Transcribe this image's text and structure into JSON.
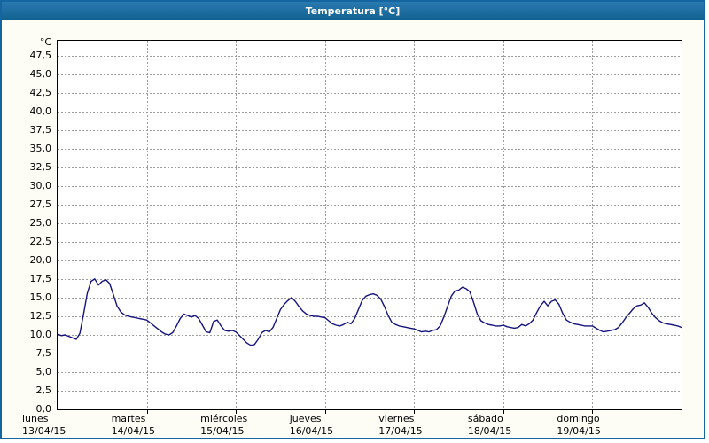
{
  "window": {
    "title": "Temperatura [°C]"
  },
  "colors": {
    "titlebar": "#1565a0",
    "series_line": "#14147e",
    "grid": "#9c9c9c",
    "plot_border": "#000000",
    "plot_background": "#ffffff"
  },
  "chart_data": {
    "type": "line",
    "title": "Temperatura [°C]",
    "grid": {
      "dashed": true,
      "horizontal": true,
      "vertical": true
    },
    "legend": "none",
    "y_axis": {
      "unit_label": "°C",
      "min": 0,
      "plot_top_value": 49.5,
      "tick_step": 2.5,
      "tick_values": [
        0,
        2.5,
        5,
        7.5,
        10,
        12.5,
        15,
        17.5,
        20,
        22.5,
        25,
        27.5,
        30,
        32.5,
        35,
        37.5,
        40,
        42.5,
        45,
        47.5
      ],
      "tick_labels": [
        "0,0",
        "2,5",
        "5,0",
        "7,5",
        "10,0",
        "12,5",
        "15,0",
        "17,5",
        "20,0",
        "22,5",
        "25,0",
        "27,5",
        "30,0",
        "32,5",
        "35,0",
        "37,5",
        "40,0",
        "42,5",
        "45,0",
        "47,5"
      ]
    },
    "x_axis": {
      "span_days": 7,
      "days": [
        {
          "name": "lunes",
          "date": "13/04/15"
        },
        {
          "name": "martes",
          "date": "14/04/15"
        },
        {
          "name": "miércoles",
          "date": "15/04/15"
        },
        {
          "name": "jueves",
          "date": "16/04/15"
        },
        {
          "name": "viernes",
          "date": "17/04/15"
        },
        {
          "name": "sábado",
          "date": "18/04/15"
        },
        {
          "name": "domingo",
          "date": "19/04/15"
        }
      ]
    },
    "series": [
      {
        "name": "Temperatura",
        "color": "#14147e",
        "sample_interval_hours": 1,
        "values": [
          10.1,
          9.9,
          10.0,
          9.8,
          9.6,
          9.4,
          10.2,
          12.8,
          15.6,
          17.2,
          17.5,
          16.7,
          17.2,
          17.4,
          16.9,
          15.4,
          13.9,
          13.1,
          12.7,
          12.5,
          12.4,
          12.3,
          12.2,
          12.1,
          12.0,
          11.6,
          11.2,
          10.8,
          10.4,
          10.1,
          10.0,
          10.3,
          11.2,
          12.2,
          12.8,
          12.6,
          12.4,
          12.6,
          12.2,
          11.3,
          10.4,
          10.3,
          11.8,
          12.0,
          11.2,
          10.6,
          10.5,
          10.6,
          10.4,
          9.9,
          9.4,
          8.9,
          8.6,
          8.7,
          9.4,
          10.3,
          10.6,
          10.4,
          11.0,
          12.2,
          13.4,
          14.1,
          14.6,
          15.0,
          14.5,
          13.8,
          13.2,
          12.8,
          12.6,
          12.5,
          12.5,
          12.4,
          12.3,
          11.9,
          11.5,
          11.3,
          11.2,
          11.4,
          11.7,
          11.5,
          12.2,
          13.4,
          14.6,
          15.2,
          15.4,
          15.5,
          15.3,
          14.8,
          13.8,
          12.6,
          11.7,
          11.4,
          11.2,
          11.1,
          11.0,
          10.9,
          10.8,
          10.6,
          10.4,
          10.5,
          10.4,
          10.6,
          10.7,
          11.2,
          12.4,
          13.8,
          15.2,
          15.9,
          16.0,
          16.4,
          16.2,
          15.8,
          14.4,
          12.8,
          11.9,
          11.6,
          11.4,
          11.3,
          11.2,
          11.2,
          11.3,
          11.1,
          11.0,
          10.9,
          11.0,
          11.4,
          11.2,
          11.5,
          12.0,
          13.0,
          13.9,
          14.5,
          13.9,
          14.5,
          14.7,
          14.1,
          12.9,
          12.0,
          11.7,
          11.5,
          11.4,
          11.3,
          11.2,
          11.2,
          11.2,
          10.9,
          10.6,
          10.4,
          10.5,
          10.6,
          10.7,
          11.0,
          11.6,
          12.3,
          12.9,
          13.5,
          13.9,
          14.0,
          14.3,
          13.7,
          12.9,
          12.3,
          11.9,
          11.6,
          11.5,
          11.4,
          11.3,
          11.2,
          11.0
        ]
      }
    ]
  }
}
